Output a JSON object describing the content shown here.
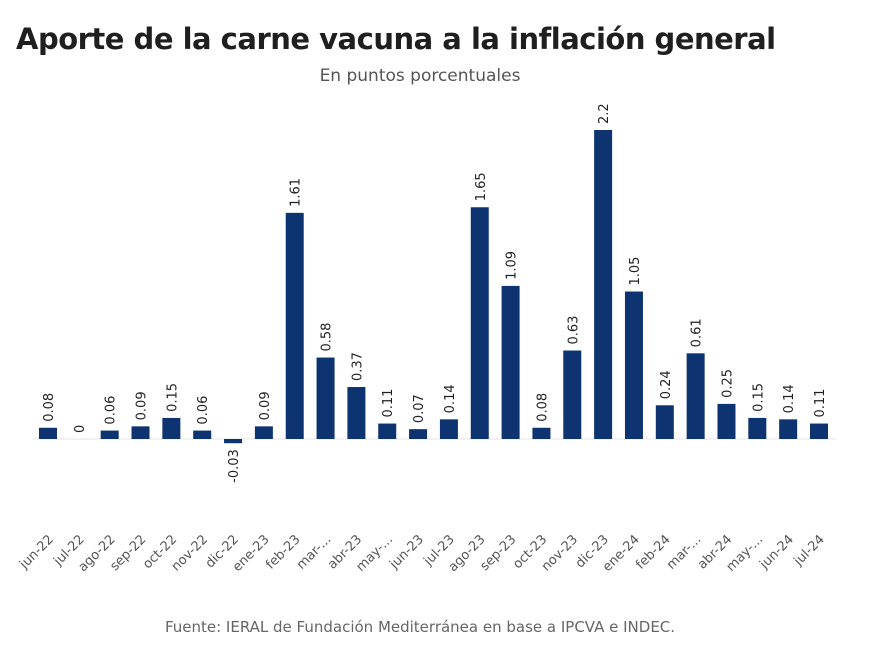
{
  "chart_data": {
    "type": "bar",
    "title": "Aporte de la carne vacuna a la inflación general",
    "subtitle": "En puntos porcentuales",
    "source": "Fuente: IERAL de Fundación Mediterránea en base a IPCVA e INDEC.",
    "categories": [
      "jun-22",
      "jul-22",
      "ago-22",
      "sep-22",
      "oct-22",
      "nov-22",
      "dic-22",
      "ene-23",
      "feb-23",
      "mar-...",
      "abr-23",
      "may-...",
      "jun-23",
      "jul-23",
      "ago-23",
      "sep-23",
      "oct-23",
      "nov-23",
      "dic-23",
      "ene-24",
      "feb-24",
      "mar-...",
      "abr-24",
      "may-...",
      "jun-24",
      "jul-24"
    ],
    "values": [
      0.08,
      0,
      0.06,
      0.09,
      0.15,
      0.06,
      -0.03,
      0.09,
      1.61,
      0.58,
      0.37,
      0.11,
      0.07,
      0.14,
      1.65,
      1.09,
      0.08,
      0.63,
      2.2,
      1.05,
      0.24,
      0.61,
      0.25,
      0.15,
      0.14,
      0.11
    ],
    "data_labels": [
      "0.08",
      "0",
      "0.06",
      "0.09",
      "0.15",
      "0.06",
      "-0.03",
      "0.09",
      "1.61",
      "0.58",
      "0.37",
      "0.11",
      "0.07",
      "0.14",
      "1.65",
      "1.09",
      "0.08",
      "0.63",
      "2.2",
      "1.05",
      "0.24",
      "0.61",
      "0.25",
      "0.15",
      "0.14",
      "0.11"
    ],
    "xlabel": "",
    "ylabel": "",
    "ylim": [
      -0.03,
      2.2
    ],
    "grid": false,
    "legend": "none",
    "colors": {
      "bar": "#0d3470",
      "baseline": "#e6e6e6"
    }
  }
}
